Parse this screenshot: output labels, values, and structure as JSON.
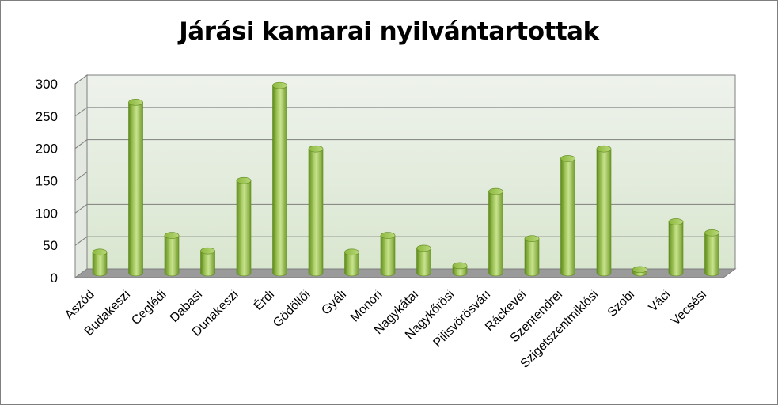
{
  "chart_data": {
    "type": "bar",
    "title": "Járási kamarai nyilvántartottak",
    "xlabel": "",
    "ylabel": "",
    "ylim": [
      0,
      300
    ],
    "yticks": [
      0,
      50,
      100,
      150,
      200,
      250,
      300
    ],
    "ytick_labels": [
      "0",
      "50",
      "100",
      "150",
      "200",
      "250",
      "300"
    ],
    "grid": true,
    "legend": "none",
    "categories": [
      "Aszód",
      "Budakeszi",
      "Ceglédi",
      "Dabasi",
      "Dunakeszi",
      "Érdi",
      "Gödöllői",
      "Gyáli",
      "Monori",
      "Nagykátai",
      "Nagykőrösi",
      "Pilisvörösvári",
      "Ráckevei",
      "Szentendrei",
      "Szigetszentmiklósi",
      "Szobi",
      "Váci",
      "Vecsési"
    ],
    "values": [
      32,
      264,
      58,
      34,
      143,
      290,
      192,
      32,
      58,
      38,
      11,
      126,
      53,
      177,
      192,
      5,
      79,
      62
    ],
    "colors": {
      "bar": "#8db83f",
      "bar_dark": "#5e8a1c",
      "bar_light": "#c9e38f",
      "wall_top": "#e6ece4",
      "wall_bottom": "#dfe9d6",
      "floor": "#999999",
      "grid": "#7f7f7f"
    }
  }
}
